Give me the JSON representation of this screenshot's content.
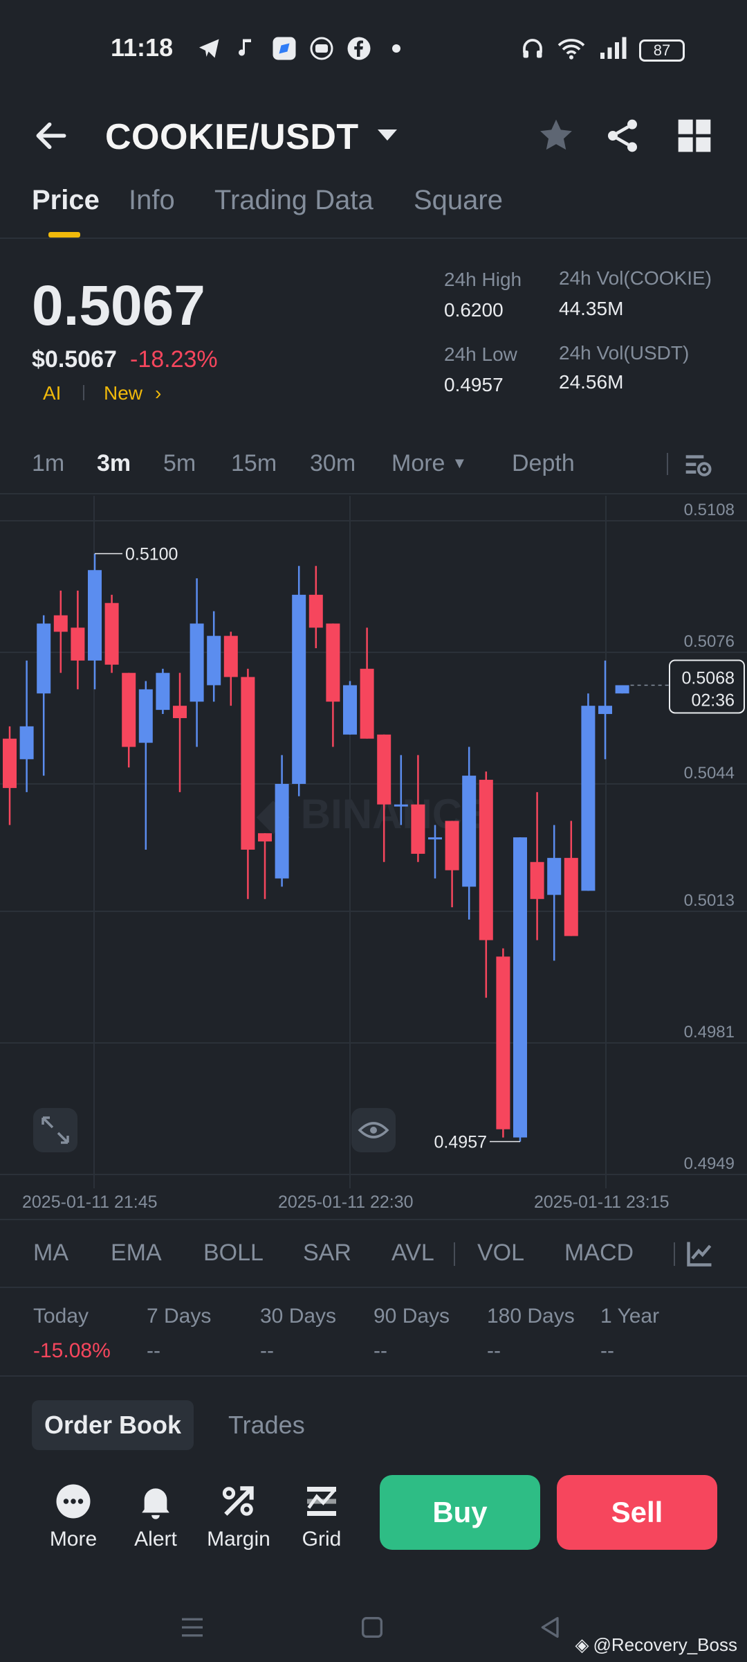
{
  "status_bar": {
    "time": "11:18",
    "battery": "87"
  },
  "header": {
    "pair": "COOKIE/USDT"
  },
  "tabs": [
    {
      "label": "Price",
      "active": true
    },
    {
      "label": "Info"
    },
    {
      "label": "Trading Data"
    },
    {
      "label": "Square"
    }
  ],
  "price": {
    "last": "0.5067",
    "usd": "$0.5067",
    "change": "-18.23%",
    "ai_label": "AI",
    "new_label": "New",
    "high_label": "24h High",
    "high": "0.6200",
    "low_label": "24h Low",
    "low": "0.4957",
    "vol_base_label": "24h Vol(COOKIE)",
    "vol_base": "44.35M",
    "vol_quote_label": "24h Vol(USDT)",
    "vol_quote": "24.56M"
  },
  "timeframes": [
    "1m",
    "3m",
    "5m",
    "15m",
    "30m",
    "More",
    "Depth"
  ],
  "timeframe_active": "3m",
  "chart_data": {
    "type": "candlestick",
    "y_ticks": [
      "0.5108",
      "0.5076",
      "0.5044",
      "0.5013",
      "0.4981",
      "0.4949"
    ],
    "x_ticks": [
      "2025-01-11 21:45",
      "2025-01-11 22:30",
      "2025-01-11 23:15"
    ],
    "max_marker": "0.5100",
    "min_marker": "0.4957",
    "current_price": "0.5068",
    "countdown": "02:36",
    "ylim": [
      0.4949,
      0.5108
    ],
    "candles": [
      [
        0.5055,
        0.5043,
        0.5058,
        0.5034
      ],
      [
        0.505,
        0.5058,
        0.5074,
        0.5042
      ],
      [
        0.5066,
        0.5083,
        0.5085,
        0.5046
      ],
      [
        0.5085,
        0.5081,
        0.5091,
        0.5071
      ],
      [
        0.5082,
        0.5074,
        0.5091,
        0.5067
      ],
      [
        0.5074,
        0.5096,
        0.51,
        0.5067
      ],
      [
        0.5088,
        0.5073,
        0.509,
        0.5071
      ],
      [
        0.5071,
        0.5053,
        0.5071,
        0.5048
      ],
      [
        0.5054,
        0.5067,
        0.5069,
        0.5028
      ],
      [
        0.5062,
        0.5071,
        0.5072,
        0.5061
      ],
      [
        0.5063,
        0.506,
        0.5071,
        0.5042
      ],
      [
        0.5064,
        0.5083,
        0.5094,
        0.5053
      ],
      [
        0.5068,
        0.508,
        0.5086,
        0.5064
      ],
      [
        0.508,
        0.507,
        0.5081,
        0.5063
      ],
      [
        0.507,
        0.5028,
        0.5072,
        0.5016
      ],
      [
        0.5032,
        0.503,
        0.5032,
        0.5016
      ],
      [
        0.5021,
        0.5044,
        0.5051,
        0.5019
      ],
      [
        0.5044,
        0.509,
        0.5097,
        0.5041
      ],
      [
        0.509,
        0.5082,
        0.5097,
        0.5077
      ],
      [
        0.5083,
        0.5064,
        0.5083,
        0.5053
      ],
      [
        0.5056,
        0.5068,
        0.5069,
        0.5056
      ],
      [
        0.5072,
        0.5055,
        0.5082,
        0.5055
      ],
      [
        0.5056,
        0.5039,
        0.5056,
        0.5025
      ],
      [
        0.5039,
        0.5039,
        0.5051,
        0.5034
      ],
      [
        0.5039,
        0.5027,
        0.5051,
        0.5025
      ],
      [
        0.5031,
        0.5031,
        0.5034,
        0.5021
      ],
      [
        0.5035,
        0.5023,
        0.5035,
        0.5014
      ],
      [
        0.5019,
        0.5046,
        0.5053,
        0.5011
      ],
      [
        0.5045,
        0.5006,
        0.5047,
        0.4992
      ],
      [
        0.5002,
        0.496,
        0.5004,
        0.4958
      ],
      [
        0.4958,
        0.5031,
        0.5031,
        0.4957
      ],
      [
        0.5025,
        0.5016,
        0.5042,
        0.5006
      ],
      [
        0.5017,
        0.5026,
        0.5034,
        0.5001
      ],
      [
        0.5026,
        0.5007,
        0.5035,
        0.5007
      ],
      [
        0.5018,
        0.5063,
        0.5066,
        0.5018
      ],
      [
        0.5061,
        0.5063,
        0.5074,
        0.505
      ],
      [
        0.5066,
        0.5068,
        0.5068,
        0.5066
      ]
    ],
    "grid": true
  },
  "indicators": [
    "MA",
    "EMA",
    "BOLL",
    "SAR",
    "AVL",
    "VOL",
    "MACD"
  ],
  "periods": [
    {
      "label": "Today",
      "value": "-15.08%"
    },
    {
      "label": "7 Days",
      "value": "--"
    },
    {
      "label": "30 Days",
      "value": "--"
    },
    {
      "label": "90 Days",
      "value": "--"
    },
    {
      "label": "180 Days",
      "value": "--"
    },
    {
      "label": "1 Year",
      "value": "--"
    }
  ],
  "book_tabs": {
    "order_book": "Order Book",
    "trades": "Trades"
  },
  "actions": {
    "more": "More",
    "alert": "Alert",
    "margin": "Margin",
    "grid": "Grid",
    "buy": "Buy",
    "sell": "Sell"
  },
  "watermark": "@Recovery_Boss",
  "colors": {
    "up": "#5b8def",
    "down": "#f6465d",
    "accent": "#f0b90b",
    "buy": "#2ebd85"
  }
}
